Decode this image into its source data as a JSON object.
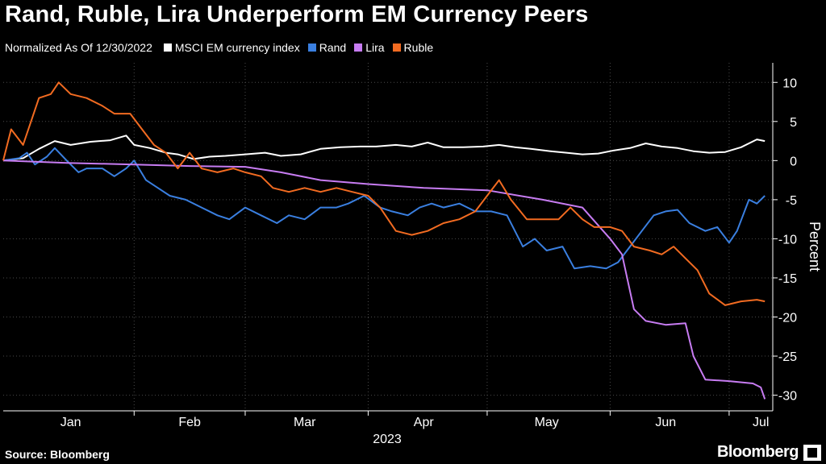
{
  "title": "Rand, Ruble, Lira Underperform EM Currency Peers",
  "legend": {
    "note": "Normalized As Of 12/30/2022",
    "items": [
      {
        "label": "MSCI EM currency index",
        "color": "#ffffff"
      },
      {
        "label": "Rand",
        "color": "#3a7fe0"
      },
      {
        "label": "Lira",
        "color": "#c77cf2"
      },
      {
        "label": "Ruble",
        "color": "#f26b21"
      }
    ]
  },
  "source": "Source: Bloomberg",
  "brand": "Bloomberg",
  "chart_data": {
    "type": "line",
    "ylabel": "Percent",
    "xlabel": "2023",
    "year": "2023",
    "y_axis_side": "right",
    "ylim": [
      -32,
      12.5
    ],
    "yticks": [
      10,
      5,
      0,
      -5,
      -10,
      -15,
      -20,
      -25,
      -30
    ],
    "xlim": [
      "2022-12-30",
      "2023-07-12"
    ],
    "xticks": [
      {
        "label": "Jan",
        "date": "2023-01-16"
      },
      {
        "label": "Feb",
        "date": "2023-02-15"
      },
      {
        "label": "Mar",
        "date": "2023-03-16"
      },
      {
        "label": "Apr",
        "date": "2023-04-15"
      },
      {
        "label": "May",
        "date": "2023-05-16"
      },
      {
        "label": "Jun",
        "date": "2023-06-15"
      },
      {
        "label": "Jul",
        "date": "2023-07-09"
      }
    ],
    "month_separators": [
      "2023-02-01",
      "2023-03-01",
      "2023-04-01",
      "2023-05-01",
      "2023-06-01",
      "2023-07-01"
    ],
    "grid": true,
    "series": [
      {
        "name": "MSCI EM currency index",
        "color": "#ffffff",
        "points": [
          [
            "2022-12-30",
            0
          ],
          [
            "2023-01-04",
            0.3
          ],
          [
            "2023-01-08",
            1.5
          ],
          [
            "2023-01-12",
            2.5
          ],
          [
            "2023-01-16",
            2
          ],
          [
            "2023-01-21",
            2.4
          ],
          [
            "2023-01-26",
            2.6
          ],
          [
            "2023-01-30",
            3.2
          ],
          [
            "2023-02-01",
            2
          ],
          [
            "2023-02-05",
            1.6
          ],
          [
            "2023-02-09",
            1
          ],
          [
            "2023-02-12",
            0.8
          ],
          [
            "2023-02-16",
            0.2
          ],
          [
            "2023-02-20",
            0.5
          ],
          [
            "2023-02-24",
            0.6
          ],
          [
            "2023-03-01",
            0.8
          ],
          [
            "2023-03-06",
            1
          ],
          [
            "2023-03-10",
            0.6
          ],
          [
            "2023-03-15",
            0.8
          ],
          [
            "2023-03-20",
            1.5
          ],
          [
            "2023-03-25",
            1.7
          ],
          [
            "2023-03-30",
            1.8
          ],
          [
            "2023-04-03",
            1.8
          ],
          [
            "2023-04-08",
            2
          ],
          [
            "2023-04-12",
            1.8
          ],
          [
            "2023-04-16",
            2.3
          ],
          [
            "2023-04-20",
            1.7
          ],
          [
            "2023-04-25",
            1.7
          ],
          [
            "2023-04-30",
            1.8
          ],
          [
            "2023-05-04",
            2
          ],
          [
            "2023-05-08",
            1.7
          ],
          [
            "2023-05-12",
            1.5
          ],
          [
            "2023-05-17",
            1.2
          ],
          [
            "2023-05-21",
            1
          ],
          [
            "2023-05-25",
            0.8
          ],
          [
            "2023-05-29",
            0.9
          ],
          [
            "2023-06-02",
            1.3
          ],
          [
            "2023-06-06",
            1.6
          ],
          [
            "2023-06-10",
            2.2
          ],
          [
            "2023-06-14",
            1.8
          ],
          [
            "2023-06-18",
            1.6
          ],
          [
            "2023-06-22",
            1.2
          ],
          [
            "2023-06-26",
            1
          ],
          [
            "2023-06-30",
            1.1
          ],
          [
            "2023-07-04",
            1.7
          ],
          [
            "2023-07-08",
            2.7
          ],
          [
            "2023-07-10",
            2.5
          ]
        ]
      },
      {
        "name": "Rand",
        "color": "#3a7fe0",
        "points": [
          [
            "2022-12-30",
            0
          ],
          [
            "2023-01-03",
            0.3
          ],
          [
            "2023-01-05",
            1
          ],
          [
            "2023-01-07",
            -0.5
          ],
          [
            "2023-01-10",
            0.5
          ],
          [
            "2023-01-12",
            1.6
          ],
          [
            "2023-01-15",
            0
          ],
          [
            "2023-01-18",
            -1.5
          ],
          [
            "2023-01-20",
            -1
          ],
          [
            "2023-01-24",
            -1
          ],
          [
            "2023-01-27",
            -2
          ],
          [
            "2023-01-30",
            -1
          ],
          [
            "2023-02-01",
            0
          ],
          [
            "2023-02-04",
            -2.5
          ],
          [
            "2023-02-07",
            -3.5
          ],
          [
            "2023-02-10",
            -4.5
          ],
          [
            "2023-02-14",
            -5
          ],
          [
            "2023-02-18",
            -6
          ],
          [
            "2023-02-22",
            -7
          ],
          [
            "2023-02-25",
            -7.5
          ],
          [
            "2023-03-01",
            -6
          ],
          [
            "2023-03-05",
            -7
          ],
          [
            "2023-03-09",
            -8
          ],
          [
            "2023-03-12",
            -7
          ],
          [
            "2023-03-16",
            -7.5
          ],
          [
            "2023-03-20",
            -6
          ],
          [
            "2023-03-24",
            -6
          ],
          [
            "2023-03-27",
            -5.5
          ],
          [
            "2023-03-31",
            -4.5
          ],
          [
            "2023-04-04",
            -6
          ],
          [
            "2023-04-07",
            -6.5
          ],
          [
            "2023-04-11",
            -7
          ],
          [
            "2023-04-14",
            -6
          ],
          [
            "2023-04-17",
            -5.5
          ],
          [
            "2023-04-20",
            -6
          ],
          [
            "2023-04-24",
            -5.5
          ],
          [
            "2023-04-28",
            -6.5
          ],
          [
            "2023-05-02",
            -6.5
          ],
          [
            "2023-05-06",
            -7
          ],
          [
            "2023-05-10",
            -11
          ],
          [
            "2023-05-13",
            -10
          ],
          [
            "2023-05-16",
            -11.5
          ],
          [
            "2023-05-20",
            -11
          ],
          [
            "2023-05-23",
            -13.8
          ],
          [
            "2023-05-27",
            -13.5
          ],
          [
            "2023-05-31",
            -13.8
          ],
          [
            "2023-06-03",
            -13
          ],
          [
            "2023-06-06",
            -11
          ],
          [
            "2023-06-09",
            -9
          ],
          [
            "2023-06-12",
            -7
          ],
          [
            "2023-06-15",
            -6.5
          ],
          [
            "2023-06-18",
            -6.3
          ],
          [
            "2023-06-21",
            -8
          ],
          [
            "2023-06-25",
            -9
          ],
          [
            "2023-06-28",
            -8.5
          ],
          [
            "2023-07-01",
            -10.5
          ],
          [
            "2023-07-03",
            -9
          ],
          [
            "2023-07-06",
            -5
          ],
          [
            "2023-07-08",
            -5.5
          ],
          [
            "2023-07-10",
            -4.5
          ]
        ]
      },
      {
        "name": "Lira",
        "color": "#c77cf2",
        "points": [
          [
            "2022-12-30",
            0
          ],
          [
            "2023-01-15",
            -0.3
          ],
          [
            "2023-02-01",
            -0.5
          ],
          [
            "2023-02-15",
            -0.7
          ],
          [
            "2023-03-01",
            -0.8
          ],
          [
            "2023-03-10",
            -1.5
          ],
          [
            "2023-03-20",
            -2.5
          ],
          [
            "2023-04-01",
            -3
          ],
          [
            "2023-04-15",
            -3.5
          ],
          [
            "2023-05-01",
            -3.8
          ],
          [
            "2023-05-15",
            -5
          ],
          [
            "2023-05-25",
            -6
          ],
          [
            "2023-06-01",
            -10
          ],
          [
            "2023-06-04",
            -12
          ],
          [
            "2023-06-07",
            -19
          ],
          [
            "2023-06-10",
            -20.5
          ],
          [
            "2023-06-15",
            -21
          ],
          [
            "2023-06-20",
            -20.8
          ],
          [
            "2023-06-22",
            -25
          ],
          [
            "2023-06-25",
            -28
          ],
          [
            "2023-07-01",
            -28.2
          ],
          [
            "2023-07-07",
            -28.5
          ],
          [
            "2023-07-09",
            -29
          ],
          [
            "2023-07-10",
            -30.5
          ]
        ]
      },
      {
        "name": "Ruble",
        "color": "#f26b21",
        "points": [
          [
            "2022-12-30",
            0
          ],
          [
            "2023-01-01",
            4
          ],
          [
            "2023-01-04",
            2
          ],
          [
            "2023-01-08",
            8
          ],
          [
            "2023-01-11",
            8.5
          ],
          [
            "2023-01-13",
            10
          ],
          [
            "2023-01-16",
            8.5
          ],
          [
            "2023-01-20",
            8
          ],
          [
            "2023-01-24",
            7
          ],
          [
            "2023-01-27",
            6
          ],
          [
            "2023-01-31",
            6
          ],
          [
            "2023-02-03",
            4
          ],
          [
            "2023-02-06",
            2
          ],
          [
            "2023-02-09",
            1
          ],
          [
            "2023-02-12",
            -1
          ],
          [
            "2023-02-15",
            1
          ],
          [
            "2023-02-18",
            -1
          ],
          [
            "2023-02-22",
            -1.5
          ],
          [
            "2023-02-26",
            -1
          ],
          [
            "2023-03-01",
            -1.5
          ],
          [
            "2023-03-05",
            -2
          ],
          [
            "2023-03-08",
            -3.5
          ],
          [
            "2023-03-12",
            -4
          ],
          [
            "2023-03-16",
            -3.5
          ],
          [
            "2023-03-20",
            -4
          ],
          [
            "2023-03-24",
            -3.5
          ],
          [
            "2023-03-28",
            -4
          ],
          [
            "2023-04-01",
            -4.5
          ],
          [
            "2023-04-04",
            -6
          ],
          [
            "2023-04-08",
            -9
          ],
          [
            "2023-04-12",
            -9.5
          ],
          [
            "2023-04-16",
            -9
          ],
          [
            "2023-04-20",
            -8
          ],
          [
            "2023-04-24",
            -7.5
          ],
          [
            "2023-04-28",
            -6.5
          ],
          [
            "2023-05-01",
            -4.5
          ],
          [
            "2023-05-04",
            -2.5
          ],
          [
            "2023-05-07",
            -5
          ],
          [
            "2023-05-11",
            -7.5
          ],
          [
            "2023-05-15",
            -7.5
          ],
          [
            "2023-05-19",
            -7.5
          ],
          [
            "2023-05-22",
            -6
          ],
          [
            "2023-05-25",
            -7.5
          ],
          [
            "2023-05-28",
            -8.5
          ],
          [
            "2023-06-01",
            -8.5
          ],
          [
            "2023-06-04",
            -9
          ],
          [
            "2023-06-07",
            -11
          ],
          [
            "2023-06-11",
            -11.5
          ],
          [
            "2023-06-14",
            -12
          ],
          [
            "2023-06-17",
            -11
          ],
          [
            "2023-06-20",
            -12.5
          ],
          [
            "2023-06-23",
            -14
          ],
          [
            "2023-06-26",
            -17
          ],
          [
            "2023-06-30",
            -18.5
          ],
          [
            "2023-07-04",
            -18
          ],
          [
            "2023-07-08",
            -17.8
          ],
          [
            "2023-07-10",
            -18
          ]
        ]
      }
    ]
  }
}
